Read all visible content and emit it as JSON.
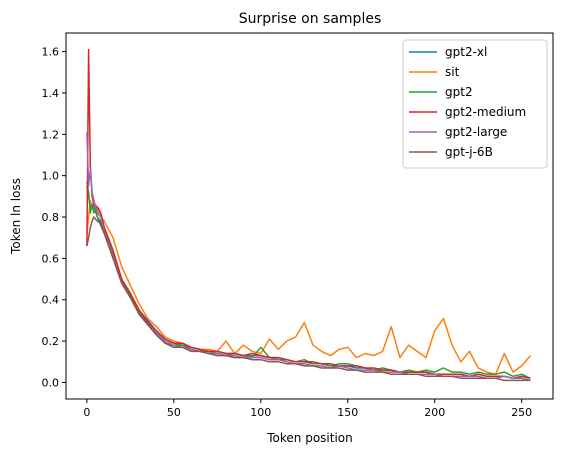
{
  "chart_data": {
    "type": "line",
    "title": "Surprise on samples",
    "xlabel": "Token position",
    "ylabel": "Token ln loss",
    "xlim": [
      -12,
      268
    ],
    "ylim": [
      -0.08,
      1.69
    ],
    "xticks": [
      0,
      50,
      100,
      150,
      200,
      250
    ],
    "yticks": [
      0.0,
      0.2,
      0.4,
      0.6,
      0.8,
      1.0,
      1.2,
      1.4,
      1.6
    ],
    "ytick_labels": [
      "0.0",
      "0.2",
      "0.4",
      "0.6",
      "0.8",
      "1.0",
      "1.2",
      "1.4",
      "1.6"
    ],
    "grid": false,
    "legend_position": "top-right",
    "x_points": [
      0,
      1,
      2,
      3,
      4,
      5,
      6,
      8,
      10,
      15,
      20,
      25,
      30,
      35,
      40,
      45,
      50,
      55,
      60,
      65,
      70,
      75,
      80,
      85,
      90,
      95,
      100,
      105,
      110,
      115,
      120,
      125,
      130,
      135,
      140,
      145,
      150,
      155,
      160,
      165,
      170,
      175,
      180,
      185,
      190,
      195,
      200,
      205,
      210,
      215,
      220,
      225,
      230,
      235,
      240,
      245,
      250,
      255
    ],
    "series": [
      {
        "name": "gpt2-xl",
        "color": "#1f77b4",
        "values": [
          0.95,
          0.9,
          0.85,
          0.86,
          0.84,
          0.83,
          0.8,
          0.76,
          0.72,
          0.63,
          0.5,
          0.43,
          0.35,
          0.3,
          0.25,
          0.21,
          0.19,
          0.18,
          0.17,
          0.16,
          0.15,
          0.15,
          0.14,
          0.14,
          0.13,
          0.13,
          0.13,
          0.12,
          0.12,
          0.11,
          0.1,
          0.1,
          0.09,
          0.09,
          0.08,
          0.08,
          0.08,
          0.07,
          0.07,
          0.06,
          0.06,
          0.06,
          0.05,
          0.05,
          0.05,
          0.05,
          0.04,
          0.04,
          0.04,
          0.04,
          0.03,
          0.04,
          0.03,
          0.03,
          0.03,
          0.02,
          0.03,
          0.02
        ]
      },
      {
        "name": "sit",
        "color": "#ff7f0e",
        "values": [
          0.72,
          0.8,
          0.88,
          0.85,
          0.87,
          0.86,
          0.84,
          0.8,
          0.78,
          0.7,
          0.56,
          0.47,
          0.38,
          0.31,
          0.27,
          0.22,
          0.2,
          0.19,
          0.17,
          0.16,
          0.16,
          0.15,
          0.2,
          0.14,
          0.18,
          0.15,
          0.14,
          0.21,
          0.16,
          0.2,
          0.22,
          0.29,
          0.18,
          0.15,
          0.13,
          0.16,
          0.17,
          0.12,
          0.14,
          0.13,
          0.15,
          0.27,
          0.12,
          0.18,
          0.15,
          0.12,
          0.25,
          0.31,
          0.18,
          0.1,
          0.15,
          0.07,
          0.05,
          0.04,
          0.14,
          0.05,
          0.08,
          0.13
        ]
      },
      {
        "name": "gpt2",
        "color": "#2ca02c",
        "values": [
          0.97,
          0.92,
          0.82,
          0.86,
          0.82,
          0.83,
          0.8,
          0.78,
          0.74,
          0.62,
          0.49,
          0.42,
          0.34,
          0.28,
          0.23,
          0.19,
          0.18,
          0.18,
          0.16,
          0.15,
          0.15,
          0.14,
          0.13,
          0.14,
          0.13,
          0.12,
          0.17,
          0.12,
          0.11,
          0.11,
          0.1,
          0.11,
          0.09,
          0.09,
          0.08,
          0.09,
          0.09,
          0.08,
          0.07,
          0.06,
          0.07,
          0.06,
          0.05,
          0.06,
          0.05,
          0.06,
          0.05,
          0.07,
          0.05,
          0.05,
          0.04,
          0.05,
          0.04,
          0.04,
          0.05,
          0.03,
          0.04,
          0.02
        ]
      },
      {
        "name": "gpt2-medium",
        "color": "#d62728",
        "values": [
          0.66,
          1.61,
          1.05,
          0.9,
          0.86,
          0.84,
          0.85,
          0.82,
          0.75,
          0.64,
          0.5,
          0.43,
          0.35,
          0.29,
          0.25,
          0.21,
          0.19,
          0.19,
          0.17,
          0.16,
          0.15,
          0.15,
          0.14,
          0.14,
          0.13,
          0.14,
          0.13,
          0.12,
          0.12,
          0.11,
          0.1,
          0.1,
          0.1,
          0.09,
          0.09,
          0.08,
          0.08,
          0.08,
          0.07,
          0.07,
          0.06,
          0.06,
          0.05,
          0.05,
          0.05,
          0.05,
          0.04,
          0.04,
          0.04,
          0.04,
          0.03,
          0.04,
          0.03,
          0.03,
          0.03,
          0.02,
          0.03,
          0.02
        ]
      },
      {
        "name": "gpt2-large",
        "color": "#9467bd",
        "values": [
          1.21,
          0.95,
          1.03,
          0.92,
          0.88,
          0.85,
          0.82,
          0.8,
          0.73,
          0.61,
          0.48,
          0.41,
          0.33,
          0.28,
          0.24,
          0.2,
          0.18,
          0.17,
          0.16,
          0.15,
          0.14,
          0.14,
          0.13,
          0.13,
          0.12,
          0.12,
          0.12,
          0.11,
          0.11,
          0.1,
          0.09,
          0.09,
          0.08,
          0.08,
          0.07,
          0.08,
          0.07,
          0.06,
          0.06,
          0.06,
          0.05,
          0.05,
          0.05,
          0.04,
          0.04,
          0.04,
          0.04,
          0.03,
          0.03,
          0.03,
          0.03,
          0.03,
          0.02,
          0.02,
          0.03,
          0.02,
          0.02,
          0.01
        ]
      },
      {
        "name": "gpt-j-6B",
        "color": "#8c564b",
        "values": [
          0.66,
          0.7,
          0.75,
          0.78,
          0.8,
          0.79,
          0.78,
          0.77,
          0.72,
          0.6,
          0.48,
          0.41,
          0.33,
          0.28,
          0.23,
          0.19,
          0.17,
          0.17,
          0.15,
          0.15,
          0.14,
          0.13,
          0.13,
          0.12,
          0.12,
          0.11,
          0.11,
          0.1,
          0.1,
          0.09,
          0.09,
          0.08,
          0.08,
          0.07,
          0.07,
          0.07,
          0.06,
          0.06,
          0.05,
          0.05,
          0.05,
          0.04,
          0.04,
          0.04,
          0.04,
          0.03,
          0.03,
          0.03,
          0.03,
          0.02,
          0.02,
          0.02,
          0.02,
          0.02,
          0.01,
          0.01,
          0.01,
          0.01
        ]
      }
    ]
  }
}
